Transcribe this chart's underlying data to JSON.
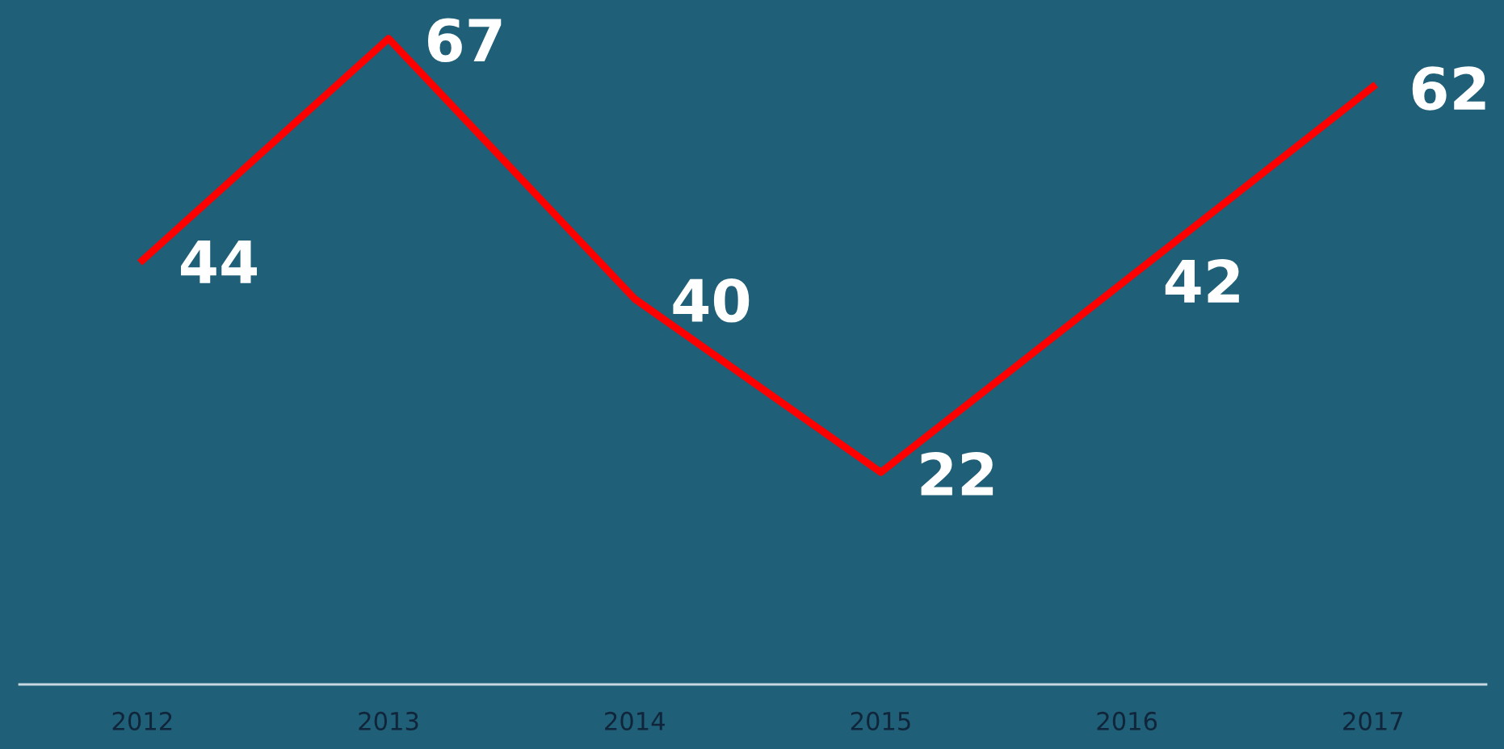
{
  "chart_data": {
    "type": "line",
    "categories": [
      "2012",
      "2013",
      "2014",
      "2015",
      "2016",
      "2017"
    ],
    "series": [
      {
        "color": "#ff0000",
        "values": [
          44,
          67,
          40,
          22,
          42,
          62
        ]
      }
    ],
    "ylim": [
      0,
      71
    ],
    "data_labels": true,
    "tick_labels": "x",
    "grid": false,
    "legend": false,
    "marker": "none",
    "line_style": "solid"
  }
}
